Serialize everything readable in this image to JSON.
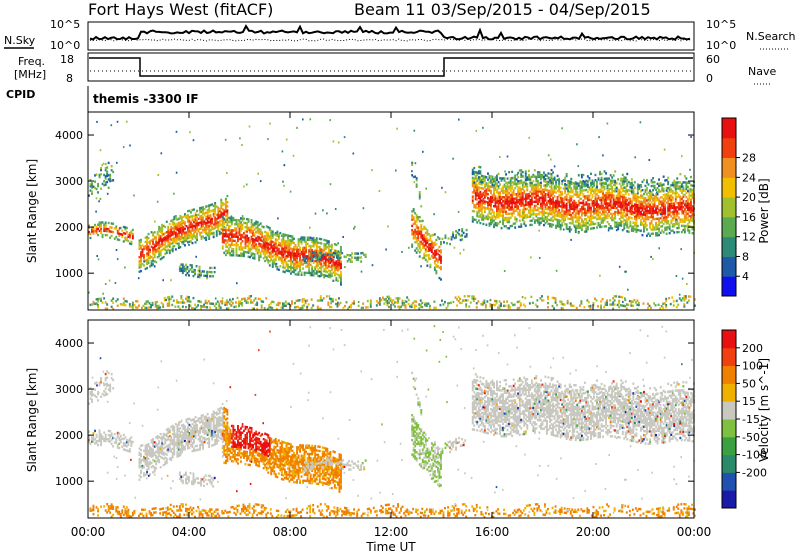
{
  "header": {
    "title": "Fort Hays West (fitACF)",
    "beam_info": "Beam 11  03/Sep/2015 - 04/Sep/2015"
  },
  "panels": {
    "nsky_label": "N.Sky",
    "nsearch_label": "N.Search",
    "noise_ticks_left": [
      "10^5",
      "10^0"
    ],
    "noise_ticks_right": [
      "10^5",
      "10^0"
    ],
    "freq_label_1": "Freq.",
    "freq_label_2": "[MHz]",
    "freq_ticks": [
      "18",
      "8"
    ],
    "nave_label": "Nave",
    "nave_ticks": [
      "60",
      "0"
    ],
    "cpid_label": "CPID",
    "cpid_text": "themis -3300 IF"
  },
  "chart_data": [
    {
      "type": "heatmap",
      "title": "",
      "xlabel": "Time UT",
      "ylabel": "Slant Range [km]",
      "x_ticks": [
        "00:00",
        "04:00",
        "08:00",
        "12:00",
        "16:00",
        "20:00",
        "00:00"
      ],
      "y_ticks": [
        1000,
        2000,
        3000,
        4000
      ],
      "xlim": [
        0,
        24
      ],
      "ylim": [
        200,
        4500
      ],
      "colorbar": {
        "label": "Power [dB]",
        "ticks": [
          4,
          8,
          12,
          16,
          20,
          24,
          28
        ],
        "colors": [
          "#1010ee",
          "#1e5aa8",
          "#2e8a78",
          "#5aaa50",
          "#a0c030",
          "#f0c000",
          "#f09020",
          "#f04010",
          "#e81010"
        ]
      }
    },
    {
      "type": "heatmap",
      "title": "",
      "xlabel": "Time UT",
      "ylabel": "Slant Range [km]",
      "x_ticks": [
        "00:00",
        "04:00",
        "08:00",
        "12:00",
        "16:00",
        "20:00",
        "00:00"
      ],
      "y_ticks": [
        1000,
        2000,
        3000,
        4000
      ],
      "xlim": [
        0,
        24
      ],
      "ylim": [
        200,
        4500
      ],
      "colorbar": {
        "label": "Velocity [m s^-1]",
        "ticks": [
          200,
          100,
          50,
          15,
          -15,
          -50,
          -100,
          -200
        ],
        "colors": [
          "#1a1aa8",
          "#2050b0",
          "#2a8a6a",
          "#3aa040",
          "#80c040",
          "#c8c8c0",
          "#f0b000",
          "#f08000",
          "#f04010",
          "#e81010"
        ]
      }
    }
  ],
  "xaxis": {
    "ticks": [
      "00:00",
      "04:00",
      "08:00",
      "12:00",
      "16:00",
      "20:00",
      "00:00"
    ],
    "label": "Time UT"
  }
}
